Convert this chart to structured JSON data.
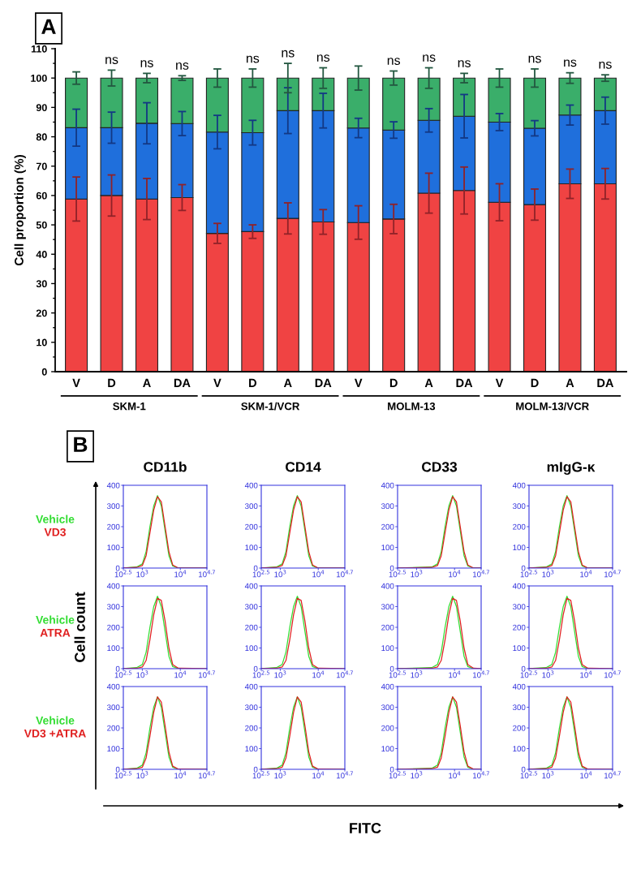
{
  "chart_data": [
    {
      "type": "bar",
      "stacked": true,
      "ylabel": "Cell proportion (%)",
      "ylim": [
        0,
        110
      ],
      "yticks": [
        0,
        10,
        20,
        30,
        40,
        50,
        60,
        70,
        80,
        90,
        100,
        110
      ],
      "annotations": [
        "A",
        "SKM-1",
        "SKM-1/VCR",
        "MOLM-13",
        "MOLM-13/VCR"
      ],
      "categories": [
        "V",
        "D",
        "A",
        "DA",
        "V",
        "D",
        "A",
        "DA",
        "V",
        "D",
        "A",
        "DA",
        "V",
        "D",
        "A",
        "DA"
      ],
      "series": [
        {
          "color": "#f04343",
          "values": [
            58.8,
            60.0,
            58.8,
            59.3,
            47.1,
            47.7,
            52.2,
            51.0,
            50.8,
            52.0,
            60.8,
            61.7,
            57.7,
            56.9,
            64.0,
            64.0
          ],
          "errors": [
            7.5,
            7,
            7,
            4.4,
            3.4,
            2.3,
            5.3,
            4.2,
            5.7,
            5,
            6.8,
            8,
            6.3,
            5.3,
            5,
            5.2
          ]
        },
        {
          "color": "#1f6fdc",
          "values": [
            24.3,
            23.1,
            25.8,
            25.2,
            34.5,
            33.7,
            36.7,
            37.9,
            32.2,
            30.3,
            24.8,
            25.3,
            27.3,
            26.0,
            23.4,
            24.9
          ],
          "errors": [
            6.3,
            5.3,
            7,
            4.1,
            5.7,
            4.2,
            7.8,
            5.9,
            3.3,
            2.8,
            4,
            7.4,
            2.9,
            2.6,
            3.4,
            4.6
          ]
        },
        {
          "color": "#3aae6a",
          "values": [
            16.9,
            16.9,
            15.4,
            15.5,
            18.4,
            18.6,
            11.1,
            11.1,
            17.0,
            17.7,
            14.4,
            13.0,
            15.0,
            17.1,
            12.6,
            11.1
          ],
          "errors": [
            2.1,
            2.7,
            1.6,
            0.8,
            3.1,
            3.1,
            5,
            3.5,
            4.1,
            2.4,
            3.5,
            1.6,
            3.1,
            3.1,
            1.8,
            1.1
          ],
          "value_labels": [
            null,
            "ns",
            "ns",
            "ns",
            null,
            "ns",
            "ns",
            "ns",
            null,
            "ns",
            "ns",
            "ns",
            null,
            "ns",
            "ns",
            "ns"
          ]
        }
      ]
    },
    {
      "type": "line",
      "title": "CD11b",
      "annotations": [
        "B"
      ],
      "log": "x",
      "x": [
        316.2,
        708,
        1000,
        1259,
        1585,
        1995,
        2512,
        3162,
        3981,
        5012,
        6310,
        8913,
        50119
      ],
      "xlim": [
        316.2,
        50119
      ],
      "xticks": [
        {
          "value": 316.2,
          "label": "10$^{2.5}$"
        },
        {
          "value": 1000,
          "label": "10$^{3}$"
        },
        {
          "value": 10000,
          "label": "10$^{4}$"
        },
        {
          "value": 50119,
          "label": "10$^{4.7}$"
        }
      ],
      "ylim": [
        0,
        400
      ],
      "yticks": [
        0,
        100,
        200,
        300,
        400
      ],
      "series": [
        {
          "name": "Vehicle",
          "color": "#33dd33",
          "values": [
            0,
            5,
            20,
            80,
            200,
            300,
            350,
            300,
            180,
            60,
            10,
            0,
            0
          ]
        },
        {
          "name": "VD3",
          "color": "#e02020",
          "values": [
            0,
            3,
            12,
            60,
            170,
            280,
            345,
            320,
            200,
            80,
            15,
            0,
            0
          ]
        }
      ]
    },
    {
      "type": "line",
      "title": "CD14",
      "log": "x",
      "x": [
        316.2,
        794,
        1122,
        1413,
        1778,
        2239,
        2818,
        3548,
        4467,
        5623,
        7079,
        10000,
        50119
      ],
      "xlim": [
        316.2,
        50119
      ],
      "xticks": [
        {
          "value": 316.2,
          "label": "10$^{2.5}$"
        },
        {
          "value": 1000,
          "label": "10$^{3}$"
        },
        {
          "value": 10000,
          "label": "10$^{4}$"
        },
        {
          "value": 50119,
          "label": "10$^{4.7}$"
        }
      ],
      "ylim": [
        0,
        400
      ],
      "yticks": [
        0,
        100,
        200,
        300,
        400
      ],
      "series": [
        {
          "color": "#33dd33",
          "values": [
            0,
            5,
            20,
            80,
            200,
            300,
            350,
            300,
            180,
            60,
            10,
            0,
            0
          ]
        },
        {
          "color": "#e02020",
          "values": [
            0,
            3,
            12,
            60,
            170,
            280,
            345,
            320,
            200,
            80,
            15,
            0,
            0
          ]
        }
      ]
    },
    {
      "type": "line",
      "title": "CD33",
      "log": "x",
      "x": [
        316.2,
        2512,
        3548,
        4467,
        5623,
        7079,
        8913,
        11220,
        14125,
        17783,
        22387,
        31623,
        50119
      ],
      "xlim": [
        316.2,
        50119
      ],
      "xticks": [
        {
          "value": 316.2,
          "label": "10$^{2.5}$"
        },
        {
          "value": 1000,
          "label": "10$^{3}$"
        },
        {
          "value": 10000,
          "label": "10$^{4}$"
        },
        {
          "value": 50119,
          "label": "10$^{4.7}$"
        }
      ],
      "ylim": [
        0,
        400
      ],
      "yticks": [
        0,
        100,
        200,
        300,
        400
      ],
      "series": [
        {
          "color": "#33dd33",
          "values": [
            0,
            5,
            20,
            80,
            200,
            300,
            350,
            300,
            180,
            60,
            10,
            0,
            0
          ]
        },
        {
          "color": "#e02020",
          "values": [
            0,
            3,
            12,
            60,
            170,
            280,
            345,
            320,
            200,
            80,
            15,
            0,
            0
          ]
        }
      ]
    },
    {
      "type": "line",
      "title": "mIgG-κ",
      "log": "x",
      "x": [
        316.2,
        891,
        1259,
        1585,
        1995,
        2512,
        3162,
        3981,
        5012,
        6310,
        7943,
        11220,
        50119
      ],
      "xlim": [
        316.2,
        50119
      ],
      "xticks": [
        {
          "value": 316.2,
          "label": "10$^{2.5}$"
        },
        {
          "value": 1000,
          "label": "10$^{3}$"
        },
        {
          "value": 10000,
          "label": "10$^{4}$"
        },
        {
          "value": 50119,
          "label": "10$^{4.7}$"
        }
      ],
      "ylim": [
        0,
        400
      ],
      "yticks": [
        0,
        100,
        200,
        300,
        400
      ],
      "series": [
        {
          "color": "#33dd33",
          "values": [
            0,
            5,
            20,
            80,
            200,
            300,
            350,
            300,
            180,
            60,
            10,
            0,
            0
          ]
        },
        {
          "color": "#e02020",
          "values": [
            0,
            3,
            12,
            60,
            170,
            280,
            345,
            320,
            200,
            80,
            15,
            0,
            0
          ]
        }
      ]
    },
    {
      "type": "line",
      "ylabel": "Cell count",
      "log": "x",
      "x": [
        316.2,
        708,
        1000,
        1259,
        1585,
        1995,
        2512,
        3162,
        3981,
        5012,
        6310,
        8913,
        50119
      ],
      "xlim": [
        316.2,
        50119
      ],
      "xticks": [
        {
          "value": 316.2,
          "label": "10$^{2.5}$"
        },
        {
          "value": 1000,
          "label": "10$^{3}$"
        },
        {
          "value": 10000,
          "label": "10$^{4}$"
        },
        {
          "value": 50119,
          "label": "10$^{4.7}$"
        }
      ],
      "ylim": [
        0,
        400
      ],
      "yticks": [
        0,
        100,
        200,
        300,
        400
      ],
      "series": [
        {
          "name": "Vehicle",
          "color": "#33dd33",
          "values": [
            0,
            5,
            20,
            80,
            200,
            300,
            350,
            300,
            180,
            60,
            10,
            0,
            0
          ]
        },
        {
          "name": "ATRA",
          "color": "#e02020",
          "values": [
            0,
            2,
            8,
            40,
            140,
            260,
            340,
            330,
            230,
            100,
            20,
            2,
            0
          ]
        }
      ]
    },
    {
      "type": "line",
      "log": "x",
      "x": [
        316.2,
        794,
        1122,
        1413,
        1778,
        2239,
        2818,
        3548,
        4467,
        5623,
        7079,
        10000,
        50119
      ],
      "xlim": [
        316.2,
        50119
      ],
      "xticks": [
        {
          "value": 316.2,
          "label": "10$^{2.5}$"
        },
        {
          "value": 1000,
          "label": "10$^{3}$"
        },
        {
          "value": 10000,
          "label": "10$^{4}$"
        },
        {
          "value": 50119,
          "label": "10$^{4.7}$"
        }
      ],
      "ylim": [
        0,
        400
      ],
      "yticks": [
        0,
        100,
        200,
        300,
        400
      ],
      "series": [
        {
          "color": "#33dd33",
          "values": [
            0,
            5,
            20,
            80,
            200,
            300,
            350,
            300,
            180,
            60,
            10,
            0,
            0
          ]
        },
        {
          "color": "#e02020",
          "values": [
            0,
            2,
            8,
            40,
            140,
            260,
            340,
            330,
            230,
            100,
            20,
            2,
            0
          ]
        }
      ]
    },
    {
      "type": "line",
      "log": "x",
      "x": [
        316.2,
        2512,
        3548,
        4467,
        5623,
        7079,
        8913,
        11220,
        14125,
        17783,
        22387,
        31623,
        50119
      ],
      "xlim": [
        316.2,
        50119
      ],
      "xticks": [
        {
          "value": 316.2,
          "label": "10$^{2.5}$"
        },
        {
          "value": 1000,
          "label": "10$^{3}$"
        },
        {
          "value": 10000,
          "label": "10$^{4}$"
        },
        {
          "value": 50119,
          "label": "10$^{4.7}$"
        }
      ],
      "ylim": [
        0,
        400
      ],
      "yticks": [
        0,
        100,
        200,
        300,
        400
      ],
      "series": [
        {
          "color": "#33dd33",
          "values": [
            0,
            5,
            20,
            80,
            200,
            300,
            350,
            300,
            180,
            60,
            10,
            0,
            0
          ]
        },
        {
          "color": "#e02020",
          "values": [
            0,
            2,
            8,
            40,
            140,
            260,
            340,
            330,
            230,
            100,
            20,
            2,
            0
          ]
        }
      ]
    },
    {
      "type": "line",
      "log": "x",
      "x": [
        316.2,
        891,
        1259,
        1585,
        1995,
        2512,
        3162,
        3981,
        5012,
        6310,
        7943,
        11220,
        50119
      ],
      "xlim": [
        316.2,
        50119
      ],
      "xticks": [
        {
          "value": 316.2,
          "label": "10$^{2.5}$"
        },
        {
          "value": 1000,
          "label": "10$^{3}$"
        },
        {
          "value": 10000,
          "label": "10$^{4}$"
        },
        {
          "value": 50119,
          "label": "10$^{4.7}$"
        }
      ],
      "ylim": [
        0,
        400
      ],
      "yticks": [
        0,
        100,
        200,
        300,
        400
      ],
      "series": [
        {
          "color": "#33dd33",
          "values": [
            0,
            5,
            20,
            80,
            200,
            300,
            350,
            300,
            180,
            60,
            10,
            0,
            0
          ]
        },
        {
          "color": "#e02020",
          "values": [
            0,
            2,
            8,
            40,
            140,
            260,
            340,
            330,
            230,
            100,
            20,
            2,
            0
          ]
        }
      ]
    },
    {
      "type": "line",
      "log": "x",
      "x": [
        316.2,
        708,
        1000,
        1259,
        1585,
        1995,
        2512,
        3162,
        3981,
        5012,
        6310,
        8913,
        50119
      ],
      "xlim": [
        316.2,
        50119
      ],
      "xticks": [
        {
          "value": 316.2,
          "label": "10$^{2.5}$"
        },
        {
          "value": 1000,
          "label": "10$^{3}$"
        },
        {
          "value": 10000,
          "label": "10$^{4}$"
        },
        {
          "value": 50119,
          "label": "10$^{4.7}$"
        }
      ],
      "ylim": [
        0,
        400
      ],
      "yticks": [
        0,
        100,
        200,
        300,
        400
      ],
      "series": [
        {
          "name": "Vehicle",
          "color": "#33dd33",
          "values": [
            0,
            5,
            20,
            80,
            200,
            300,
            350,
            300,
            180,
            60,
            10,
            0,
            0
          ]
        },
        {
          "name": "VD3 +ATRA",
          "color": "#e02020",
          "values": [
            0,
            3,
            10,
            55,
            160,
            275,
            350,
            325,
            210,
            85,
            15,
            1,
            0
          ]
        }
      ]
    },
    {
      "type": "line",
      "log": "x",
      "x": [
        316.2,
        794,
        1122,
        1413,
        1778,
        2239,
        2818,
        3548,
        4467,
        5623,
        7079,
        10000,
        50119
      ],
      "xlim": [
        316.2,
        50119
      ],
      "xticks": [
        {
          "value": 316.2,
          "label": "10$^{2.5}$"
        },
        {
          "value": 1000,
          "label": "10$^{3}$"
        },
        {
          "value": 10000,
          "label": "10$^{4}$"
        },
        {
          "value": 50119,
          "label": "10$^{4.7}$"
        }
      ],
      "ylim": [
        0,
        400
      ],
      "yticks": [
        0,
        100,
        200,
        300,
        400
      ],
      "series": [
        {
          "color": "#33dd33",
          "values": [
            0,
            5,
            20,
            80,
            200,
            300,
            350,
            300,
            180,
            60,
            10,
            0,
            0
          ]
        },
        {
          "color": "#e02020",
          "values": [
            0,
            3,
            10,
            55,
            160,
            275,
            350,
            325,
            210,
            85,
            15,
            1,
            0
          ]
        }
      ]
    },
    {
      "type": "line",
      "xlabel": "FITC",
      "log": "x",
      "x": [
        316.2,
        2512,
        3548,
        4467,
        5623,
        7079,
        8913,
        11220,
        14125,
        17783,
        22387,
        31623,
        50119
      ],
      "xlim": [
        316.2,
        50119
      ],
      "xticks": [
        {
          "value": 316.2,
          "label": "10$^{2.5}$"
        },
        {
          "value": 1000,
          "label": "10$^{3}$"
        },
        {
          "value": 10000,
          "label": "10$^{4}$"
        },
        {
          "value": 50119,
          "label": "10$^{4.7}$"
        }
      ],
      "ylim": [
        0,
        400
      ],
      "yticks": [
        0,
        100,
        200,
        300,
        400
      ],
      "series": [
        {
          "color": "#33dd33",
          "values": [
            0,
            5,
            20,
            80,
            200,
            300,
            350,
            300,
            180,
            60,
            10,
            0,
            0
          ]
        },
        {
          "color": "#e02020",
          "values": [
            0,
            3,
            10,
            55,
            160,
            275,
            350,
            325,
            210,
            85,
            15,
            1,
            0
          ]
        }
      ]
    },
    {
      "type": "line",
      "log": "x",
      "x": [
        316.2,
        891,
        1259,
        1585,
        1995,
        2512,
        3162,
        3981,
        5012,
        6310,
        7943,
        11220,
        50119
      ],
      "xlim": [
        316.2,
        50119
      ],
      "xticks": [
        {
          "value": 316.2,
          "label": "10$^{2.5}$"
        },
        {
          "value": 1000,
          "label": "10$^{3}$"
        },
        {
          "value": 10000,
          "label": "10$^{4}$"
        },
        {
          "value": 50119,
          "label": "10$^{4.7}$"
        }
      ],
      "ylim": [
        0,
        400
      ],
      "yticks": [
        0,
        100,
        200,
        300,
        400
      ],
      "series": [
        {
          "color": "#33dd33",
          "values": [
            0,
            5,
            20,
            80,
            200,
            300,
            350,
            300,
            180,
            60,
            10,
            0,
            0
          ]
        },
        {
          "color": "#e02020",
          "values": [
            0,
            3,
            10,
            55,
            160,
            275,
            350,
            325,
            210,
            85,
            15,
            1,
            0
          ]
        }
      ]
    }
  ]
}
